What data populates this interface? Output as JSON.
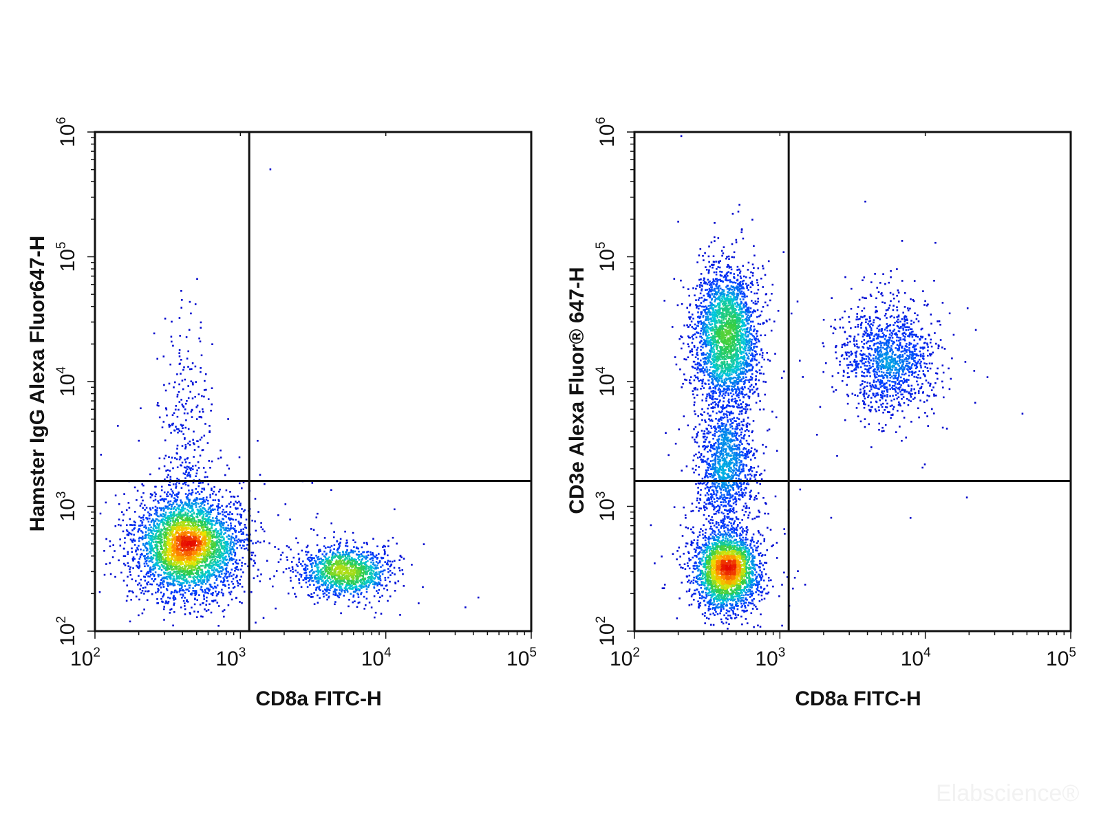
{
  "chart_data": [
    {
      "type": "scatter",
      "xlabel": "CD8a FITC-H",
      "ylabel": "Hamster IgG Alexa Fluor647-H",
      "xscale": "log",
      "yscale": "log",
      "xlim": [
        100,
        100000
      ],
      "ylim": [
        100,
        1000000
      ],
      "x_ticks": [
        {
          "base": "10",
          "exp": "2"
        },
        {
          "base": "10",
          "exp": "3"
        },
        {
          "base": "10",
          "exp": "4"
        },
        {
          "base": "10",
          "exp": "5"
        }
      ],
      "y_ticks": [
        {
          "base": "10",
          "exp": "2"
        },
        {
          "base": "10",
          "exp": "3"
        },
        {
          "base": "10",
          "exp": "4"
        },
        {
          "base": "10",
          "exp": "5"
        },
        {
          "base": "10",
          "exp": "6"
        }
      ],
      "gates": {
        "x": 1150,
        "y": 1600
      },
      "colormap": "density (blue-cyan-green-yellow-red)",
      "populations": [
        {
          "cx": 430,
          "cy": 480,
          "sx": 0.18,
          "sy": 0.2,
          "n": 3600
        },
        {
          "cx": 5200,
          "cy": 300,
          "sx": 0.15,
          "sy": 0.1,
          "n": 1300
        },
        {
          "cx": 430,
          "cy": 3500,
          "sx": 0.09,
          "sy": 0.5,
          "n": 300
        }
      ]
    },
    {
      "type": "scatter",
      "xlabel": "CD8a FITC-H",
      "ylabel": "CD3e Alexa Fluor® 647-H",
      "xscale": "log",
      "yscale": "log",
      "xlim": [
        100,
        100000
      ],
      "ylim": [
        100,
        1000000
      ],
      "x_ticks": [
        {
          "base": "10",
          "exp": "2"
        },
        {
          "base": "10",
          "exp": "3"
        },
        {
          "base": "10",
          "exp": "4"
        },
        {
          "base": "10",
          "exp": "5"
        }
      ],
      "y_ticks": [
        {
          "base": "10",
          "exp": "2"
        },
        {
          "base": "10",
          "exp": "3"
        },
        {
          "base": "10",
          "exp": "4"
        },
        {
          "base": "10",
          "exp": "5"
        },
        {
          "base": "10",
          "exp": "6"
        }
      ],
      "gates": {
        "x": 1150,
        "y": 1600
      },
      "colormap": "density (blue-cyan-green-yellow-red)",
      "populations": [
        {
          "cx": 430,
          "cy": 300,
          "sx": 0.11,
          "sy": 0.16,
          "n": 2600
        },
        {
          "cx": 430,
          "cy": 22000,
          "sx": 0.11,
          "sy": 0.28,
          "n": 2700
        },
        {
          "cx": 430,
          "cy": 2000,
          "sx": 0.1,
          "sy": 0.25,
          "n": 1200
        },
        {
          "cx": 5600,
          "cy": 15000,
          "sx": 0.16,
          "sy": 0.22,
          "n": 1300
        }
      ]
    }
  ],
  "watermark": "Elabscience®"
}
